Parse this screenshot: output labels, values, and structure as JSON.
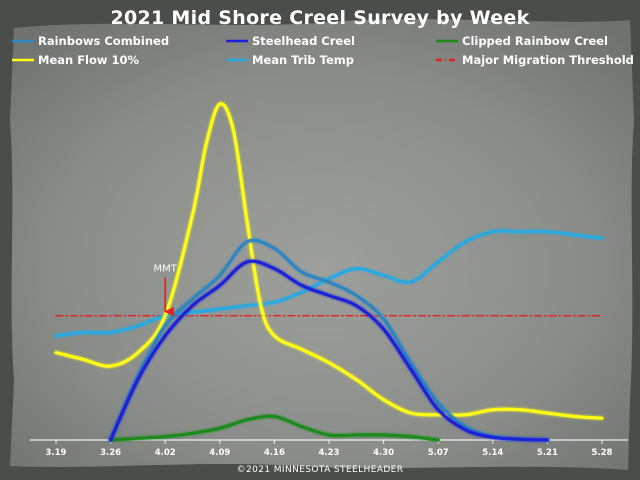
{
  "chart_data": {
    "type": "line",
    "title": "2021 Mid Shore Creel Survey by Week",
    "xlabel": "",
    "ylabel": "",
    "categories": [
      "3.19",
      "3.26",
      "4.02",
      "4.09",
      "4.16",
      "4.23",
      "4.30",
      "5.07",
      "5.14",
      "5.21",
      "5.28"
    ],
    "ylim": [
      0,
      100
    ],
    "grid": false,
    "legend_position": "top",
    "series": [
      {
        "name": "Rainbows Combined",
        "color": "#2e86c1",
        "x": [
          1,
          1.5,
          2,
          2.5,
          3,
          3.5,
          4,
          4.5,
          5,
          5.5,
          6,
          6.5,
          7,
          7.5,
          8,
          8.5,
          9
        ],
        "values": [
          0,
          19,
          34,
          42,
          49,
          59,
          57,
          50,
          47,
          43,
          36,
          23,
          11,
          4,
          1,
          0.3,
          0
        ]
      },
      {
        "name": "Steelhead Creel",
        "color": "#1c20d8",
        "x": [
          1,
          1.5,
          2,
          2.5,
          3,
          3.5,
          4,
          4.5,
          5,
          5.5,
          6,
          6.5,
          7,
          7.5,
          8,
          8.5,
          9
        ],
        "values": [
          0,
          18,
          31,
          40,
          46,
          53,
          51,
          46,
          43,
          40,
          33,
          21,
          9,
          3,
          0.8,
          0.2,
          0
        ]
      },
      {
        "name": "Clipped Rainbow Creel",
        "color": "#1a8a1a",
        "x": [
          1,
          1.5,
          2,
          2.5,
          3,
          3.5,
          4,
          4.5,
          5,
          5.5,
          6,
          6.5,
          7
        ],
        "values": [
          0,
          0.5,
          1,
          2,
          3.5,
          6,
          7,
          4,
          1.5,
          1.5,
          1.5,
          1,
          0
        ]
      },
      {
        "name": "Mean Flow 10%",
        "color": "#ffff14",
        "x": [
          0,
          0.5,
          1,
          1.5,
          2,
          2.5,
          2.75,
          3,
          3.25,
          3.5,
          3.75,
          4,
          4.5,
          5,
          5.5,
          6,
          6.5,
          7,
          7.5,
          8,
          8.5,
          9,
          9.5,
          10
        ],
        "values": [
          26,
          24,
          22,
          26,
          37,
          67,
          88,
          100,
          92,
          65,
          40,
          31,
          27,
          23,
          18,
          12,
          8,
          7.5,
          7.5,
          9,
          9,
          8,
          7,
          6.5
        ]
      },
      {
        "name": "Mean Trib Temp",
        "color": "#29a9e0",
        "x": [
          0,
          0.5,
          1,
          1.5,
          2,
          2.5,
          3,
          3.5,
          4,
          4.5,
          5,
          5.5,
          6,
          6.5,
          7,
          7.5,
          8,
          8.5,
          9,
          9.5,
          10
        ],
        "values": [
          31,
          32,
          32,
          34,
          37,
          38,
          39,
          40,
          41,
          44,
          48,
          51,
          49,
          47,
          53,
          59,
          62,
          62,
          62,
          61,
          60
        ]
      },
      {
        "name": "Major Migration Threshold",
        "color": "#e52020",
        "dashed": true,
        "x": [
          0,
          10
        ],
        "values": [
          37,
          37
        ]
      }
    ],
    "annotations": [
      {
        "text": "MMT",
        "x": 2,
        "y": 37,
        "arrow": true
      }
    ],
    "credit": "©2021 MINNESOTA STEELHEADER"
  }
}
